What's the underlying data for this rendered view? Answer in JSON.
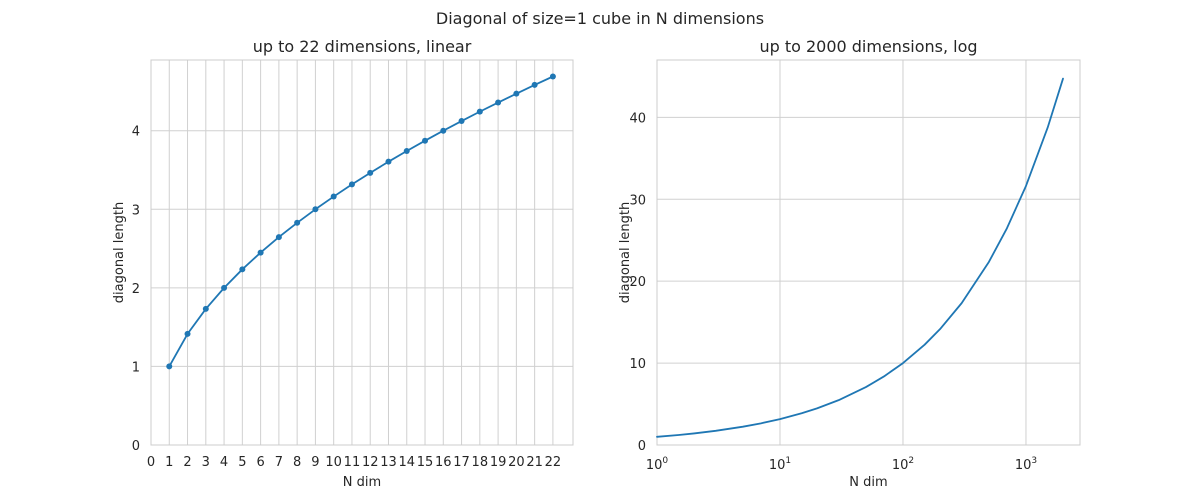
{
  "figure": {
    "suptitle": "Diagonal of size=1 cube in N dimensions"
  },
  "colors": {
    "series": "#1f77b4",
    "grid": "#d0d0d0",
    "frame": "#cccccc",
    "text": "#262626"
  },
  "chart_data": [
    {
      "type": "line",
      "title": "up to 22 dimensions, linear",
      "xlabel": "N dim",
      "ylabel": "diagonal length",
      "xscale": "linear",
      "xlim": [
        0,
        23.1
      ],
      "ylim": [
        0,
        4.9
      ],
      "grid": true,
      "markers": true,
      "xticks": [
        0,
        1,
        2,
        3,
        4,
        5,
        6,
        7,
        8,
        9,
        10,
        11,
        12,
        13,
        14,
        15,
        16,
        17,
        18,
        19,
        20,
        21,
        22
      ],
      "xtick_labels": [
        "0",
        "1",
        "2",
        "3",
        "4",
        "5",
        "6",
        "7",
        "8",
        "9",
        "10",
        "11",
        "12",
        "13",
        "14",
        "15",
        "16",
        "17",
        "18",
        "19",
        "20",
        "21",
        "22"
      ],
      "yticks": [
        0,
        1,
        2,
        3,
        4
      ],
      "ytick_labels": [
        "0",
        "1",
        "2",
        "3",
        "4"
      ],
      "series": [
        {
          "x": [
            1,
            2,
            3,
            4,
            5,
            6,
            7,
            8,
            9,
            10,
            11,
            12,
            13,
            14,
            15,
            16,
            17,
            18,
            19,
            20,
            21,
            22
          ],
          "y": [
            1.0,
            1.414,
            1.732,
            2.0,
            2.236,
            2.449,
            2.646,
            2.828,
            3.0,
            3.162,
            3.317,
            3.464,
            3.606,
            3.742,
            3.873,
            4.0,
            4.123,
            4.243,
            4.359,
            4.472,
            4.583,
            4.69
          ]
        }
      ]
    },
    {
      "type": "line",
      "title": "up to 2000 dimensions, log",
      "xlabel": "N dim",
      "ylabel": "diagonal length",
      "xscale": "log",
      "xlim": [
        1,
        2750
      ],
      "ylim": [
        0,
        47
      ],
      "grid": true,
      "markers": false,
      "xticks": [
        1,
        10,
        100,
        1000
      ],
      "xtick_labels": [
        {
          "base": "10",
          "exp": "0"
        },
        {
          "base": "10",
          "exp": "1"
        },
        {
          "base": "10",
          "exp": "2"
        },
        {
          "base": "10",
          "exp": "3"
        }
      ],
      "yticks": [
        0,
        10,
        20,
        30,
        40
      ],
      "ytick_labels": [
        "0",
        "10",
        "20",
        "30",
        "40"
      ],
      "series": [
        {
          "x": [
            1,
            1.5,
            2,
            3,
            5,
            7,
            10,
            15,
            20,
            30,
            50,
            70,
            100,
            150,
            200,
            300,
            500,
            700,
            1000,
            1500,
            2000
          ],
          "y": [
            1.0,
            1.225,
            1.414,
            1.732,
            2.236,
            2.646,
            3.162,
            3.873,
            4.472,
            5.477,
            7.071,
            8.367,
            10.0,
            12.247,
            14.142,
            17.321,
            22.361,
            26.458,
            31.623,
            38.73,
            44.721
          ]
        }
      ]
    }
  ]
}
